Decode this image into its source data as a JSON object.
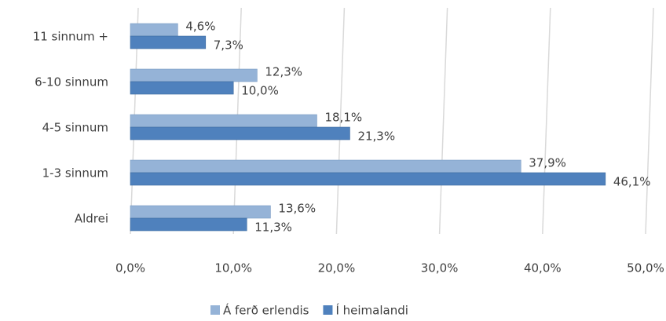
{
  "chart_data": {
    "type": "hbar",
    "categories": [
      "11 sinnum +",
      "6-10 sinnum",
      "4-5 sinnum",
      "1-3 sinnum",
      "Aldrei"
    ],
    "series": [
      {
        "name": "Á ferð erlendis",
        "color": "#95b3d7",
        "values": [
          4.6,
          12.3,
          18.1,
          37.9,
          13.6
        ],
        "value_labels": [
          "4,6%",
          "12,3%",
          "18,1%",
          "37,9%",
          "13,6%"
        ]
      },
      {
        "name": "Í heimalandi",
        "color": "#4f81bd",
        "values": [
          7.3,
          10.0,
          21.3,
          46.1,
          11.3
        ],
        "value_labels": [
          "7,3%",
          "10,0%",
          "21,3%",
          "46,1%",
          "11,3%"
        ]
      }
    ],
    "xlim": [
      0,
      50
    ],
    "xticks": [
      {
        "value": 0,
        "label": "0,0%"
      },
      {
        "value": 10,
        "label": "10,0%"
      },
      {
        "value": 20,
        "label": "20,0%"
      },
      {
        "value": 30,
        "label": "30,0%"
      },
      {
        "value": 40,
        "label": "40,0%"
      },
      {
        "value": 50,
        "label": "50,0%"
      }
    ],
    "grid": true,
    "legend": "bottom"
  }
}
